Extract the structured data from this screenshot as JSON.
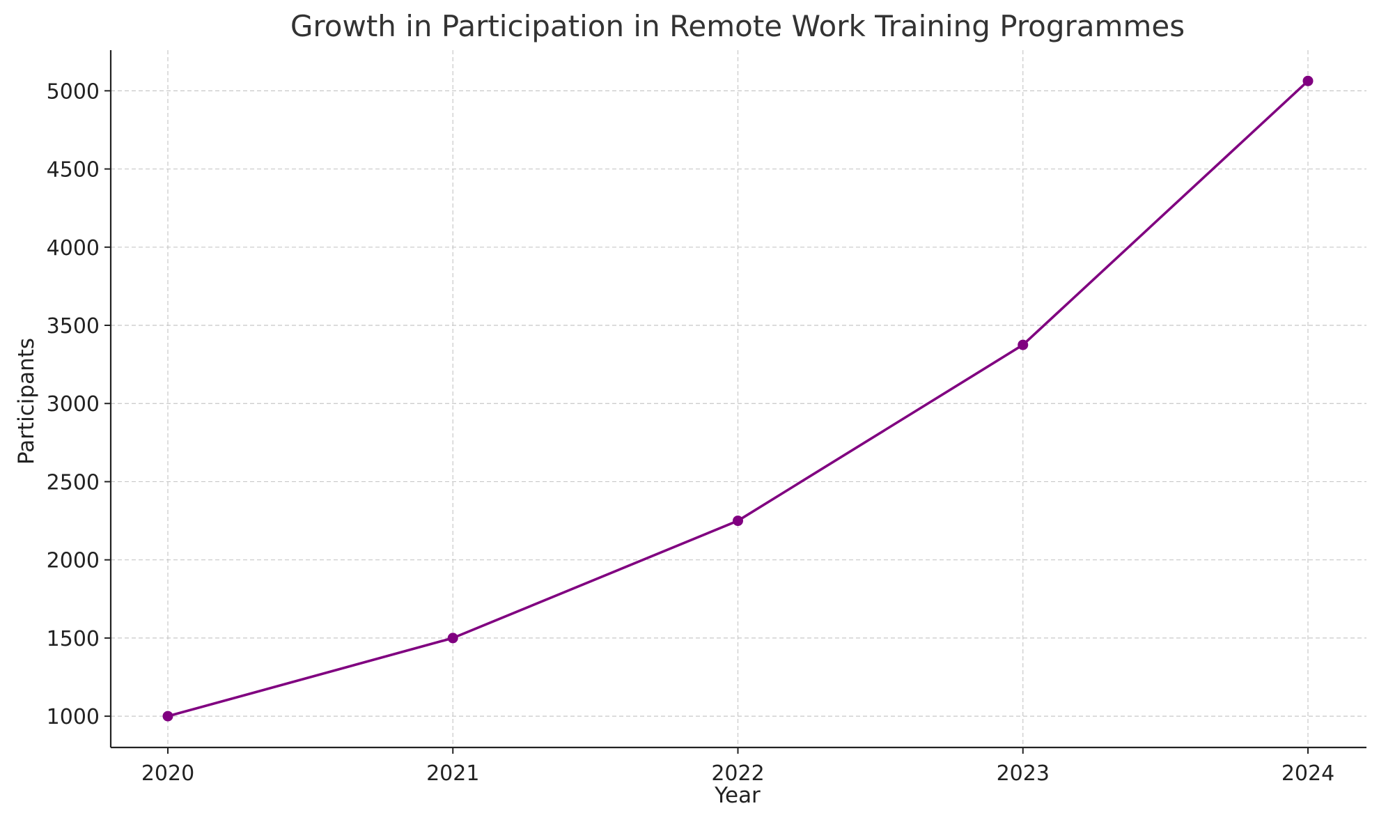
{
  "chart_data": {
    "type": "line",
    "title": "Growth in Participation in Remote Work Training Programmes",
    "xlabel": "Year",
    "ylabel": "Participants",
    "categories": [
      "2020",
      "2021",
      "2022",
      "2023",
      "2024"
    ],
    "series": [
      {
        "values": [
          1000,
          1500,
          2250,
          3375,
          5063
        ],
        "color": "#800080"
      }
    ],
    "yticks": [
      1000,
      1500,
      2000,
      2500,
      3000,
      3500,
      4000,
      4500,
      5000
    ],
    "ylim": [
      800,
      5260
    ],
    "grid": true,
    "legend": "none"
  }
}
